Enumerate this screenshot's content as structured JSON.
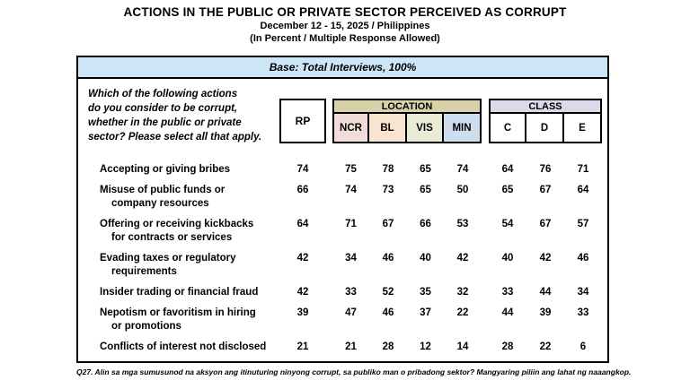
{
  "header": {
    "title": "ACTIONS IN THE PUBLIC OR PRIVATE SECTOR PERCEIVED AS CORRUPT",
    "subtitle": "December 12 - 15, 2025 / Philippines",
    "note": "(In Percent / Multiple Response Allowed)"
  },
  "table": {
    "base_label": "Base: Total Interviews, 100%",
    "question_lines": [
      "Which of the following actions",
      "do you consider to be corrupt,",
      "whether in the public or private",
      "sector? Please select all that apply."
    ],
    "columns": {
      "rp": "RP",
      "location_group": "LOCATION",
      "location": [
        "NCR",
        "BL",
        "VIS",
        "MIN"
      ],
      "class_group": "CLASS",
      "class": [
        "C",
        "D",
        "E"
      ]
    },
    "rows": [
      {
        "label1": "Accepting or giving bribes",
        "label2": "",
        "values": [
          74,
          75,
          78,
          65,
          74,
          64,
          76,
          71
        ]
      },
      {
        "label1": "Misuse of public funds or",
        "label2": "company resources",
        "values": [
          66,
          74,
          73,
          65,
          50,
          65,
          67,
          64
        ]
      },
      {
        "label1": "Offering or receiving kickbacks",
        "label2": "for contracts or services",
        "values": [
          64,
          71,
          67,
          66,
          53,
          54,
          67,
          57
        ]
      },
      {
        "label1": "Evading taxes or regulatory",
        "label2": "requirements",
        "values": [
          42,
          34,
          46,
          40,
          42,
          40,
          42,
          46
        ]
      },
      {
        "label1": "Insider trading or financial fraud",
        "label2": "",
        "values": [
          42,
          33,
          52,
          35,
          32,
          33,
          44,
          34
        ]
      },
      {
        "label1": "Nepotism or favoritism in hiring",
        "label2": "or promotions",
        "values": [
          39,
          47,
          46,
          37,
          22,
          44,
          39,
          33
        ]
      },
      {
        "label1": "Conflicts of interest not disclosed",
        "label2": "",
        "values": [
          21,
          21,
          28,
          12,
          14,
          28,
          22,
          6
        ]
      }
    ]
  },
  "footer": {
    "note": "Q27. Alin sa mga sumusunod na aksyon ang itinuturing ninyong corrupt, sa publiko man o pribadong sektor? Mangyaring piliin ang lahat ng naaangkop."
  },
  "colors": {
    "base-bar-bg": "#cde6f6",
    "location-header-bg": "#d8d2aa",
    "ncr-bg": "#f2dcda",
    "bl-bg": "#f9e5cf",
    "vis-bg": "#e9ecd4",
    "min-bg": "#cddfee",
    "class-header-bg": "#dcd9ea",
    "border": "#000000"
  }
}
